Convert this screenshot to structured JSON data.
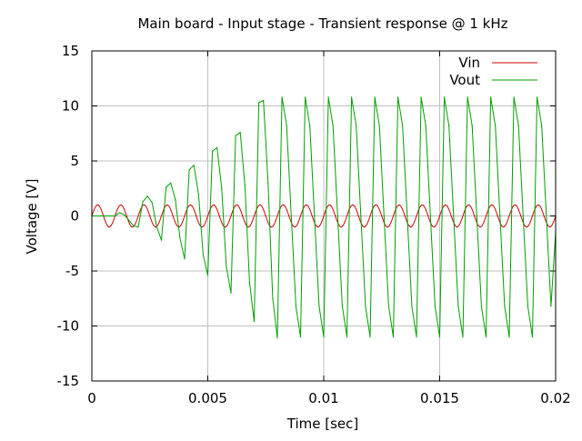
{
  "chart_data": {
    "type": "line",
    "title": "Main board - Input stage - Transient response @ 1 kHz",
    "xlabel": "Time [sec]",
    "ylabel": "Voltage [V]",
    "xlim": [
      0,
      0.02
    ],
    "ylim": [
      -15,
      15
    ],
    "xticks": [
      0,
      0.005,
      0.01,
      0.015,
      0.02
    ],
    "xtick_labels": [
      "0",
      "0.005",
      "0.01",
      "0.015",
      "0.02"
    ],
    "yticks": [
      -15,
      -10,
      -5,
      0,
      5,
      10,
      15
    ],
    "ytick_labels": [
      "-15",
      "-10",
      "-5",
      "0",
      "5",
      "10",
      "15"
    ],
    "grid": true,
    "legend_position": "top-right",
    "series": [
      {
        "name": "Vin",
        "color": "#cc0000",
        "x": [
          0,
          0.00025,
          0.0005,
          0.00075,
          0.001,
          0.00125,
          0.0015,
          0.00175,
          0.002,
          0.00225,
          0.0025,
          0.00275,
          0.003,
          0.00325,
          0.0035,
          0.00375,
          0.004,
          0.00425,
          0.0045,
          0.00475,
          0.005,
          0.00525,
          0.0055,
          0.00575,
          0.006,
          0.00625,
          0.0065,
          0.00675,
          0.007,
          0.00725,
          0.0075,
          0.00775,
          0.008,
          0.00825,
          0.0085,
          0.00875,
          0.009,
          0.00925,
          0.0095,
          0.00975,
          0.01,
          0.01025,
          0.0105,
          0.01075,
          0.011,
          0.01125,
          0.0115,
          0.01175,
          0.012,
          0.01225,
          0.0125,
          0.01275,
          0.013,
          0.01325,
          0.0135,
          0.01375,
          0.014,
          0.01425,
          0.0145,
          0.01475,
          0.015,
          0.01525,
          0.0155,
          0.01575,
          0.016,
          0.01625,
          0.0165,
          0.01675,
          0.017,
          0.01725,
          0.0175,
          0.01775,
          0.018,
          0.01825,
          0.0185,
          0.01875,
          0.019,
          0.01925,
          0.0195,
          0.01975,
          0.02
        ],
        "y": [
          0,
          1,
          0,
          -1,
          0,
          1,
          0,
          -1,
          0,
          1,
          0,
          -1,
          0,
          1,
          0,
          -1,
          0,
          1,
          0,
          -1,
          0,
          1,
          0,
          -1,
          0,
          1,
          0,
          -1,
          0,
          1,
          0,
          -1,
          0,
          1,
          0,
          -1,
          0,
          1,
          0,
          -1,
          0,
          1,
          0,
          -1,
          0,
          1,
          0,
          -1,
          0,
          1,
          0,
          -1,
          0,
          1,
          0,
          -1,
          0,
          1,
          0,
          -1,
          0,
          1,
          0,
          -1,
          0,
          1,
          0,
          -1,
          0,
          1,
          0,
          -1,
          0,
          1,
          0,
          -1,
          0,
          1,
          0,
          -1,
          0
        ]
      },
      {
        "name": "Vout",
        "color": "#00a000",
        "x": [
          0,
          0.001,
          0.0012,
          0.0014,
          0.0016,
          0.0018,
          0.002,
          0.0022,
          0.0024,
          0.0026,
          0.0028,
          0.003,
          0.0032,
          0.0034,
          0.0036,
          0.0038,
          0.004,
          0.0042,
          0.0044,
          0.0046,
          0.0048,
          0.005,
          0.0052,
          0.0054,
          0.0056,
          0.0058,
          0.006,
          0.0062,
          0.0064,
          0.0066,
          0.0068,
          0.007,
          0.0072,
          0.0074,
          0.0076,
          0.0078,
          0.008,
          0.0082,
          0.0084,
          0.0086,
          0.0088,
          0.009,
          0.0092,
          0.0094,
          0.0096,
          0.0098,
          0.01,
          0.0102,
          0.0104,
          0.0106,
          0.0108,
          0.011,
          0.0112,
          0.0114,
          0.0116,
          0.0118,
          0.012,
          0.0122,
          0.0124,
          0.0126,
          0.0128,
          0.013,
          0.0132,
          0.0134,
          0.0136,
          0.0138,
          0.014,
          0.0142,
          0.0144,
          0.0146,
          0.0148,
          0.015,
          0.0152,
          0.0154,
          0.0156,
          0.0158,
          0.016,
          0.0162,
          0.0164,
          0.0166,
          0.0168,
          0.017,
          0.0172,
          0.0174,
          0.0176,
          0.0178,
          0.018,
          0.0182,
          0.0184,
          0.0186,
          0.0188,
          0.019,
          0.0192,
          0.0194,
          0.0196,
          0.0198,
          0.02
        ],
        "y": [
          0,
          0,
          0.3,
          0.1,
          -0.4,
          -0.9,
          -1.0,
          1.3,
          1.8,
          1.2,
          -1.0,
          -2.2,
          2.6,
          3.0,
          1.5,
          -2.0,
          -3.9,
          4.2,
          4.6,
          2.0,
          -3.5,
          -5.4,
          5.9,
          6.2,
          2.5,
          -4.6,
          -7.0,
          7.3,
          7.6,
          2.8,
          -6.0,
          -9.6,
          10.3,
          10.5,
          3.0,
          -7.5,
          -11.1,
          10.8,
          8.2,
          0,
          -8.2,
          -11.0,
          10.8,
          8.2,
          0,
          -8.2,
          -11.0,
          10.8,
          8.2,
          0,
          -8.2,
          -11.0,
          10.8,
          8.2,
          0,
          -8.2,
          -11.0,
          10.8,
          8.2,
          0,
          -8.2,
          -11.0,
          10.8,
          8.2,
          0,
          -8.2,
          -11.0,
          10.8,
          8.2,
          0,
          -8.2,
          -11.0,
          10.8,
          8.2,
          0,
          -8.2,
          -11.0,
          10.8,
          8.2,
          0,
          -8.2,
          -11.0,
          10.8,
          8.2,
          0,
          -8.2,
          -11.0,
          10.8,
          8.2,
          0,
          -8.2,
          -11.0,
          10.8,
          8.2,
          0,
          -8.2,
          -1.5
        ]
      }
    ]
  }
}
